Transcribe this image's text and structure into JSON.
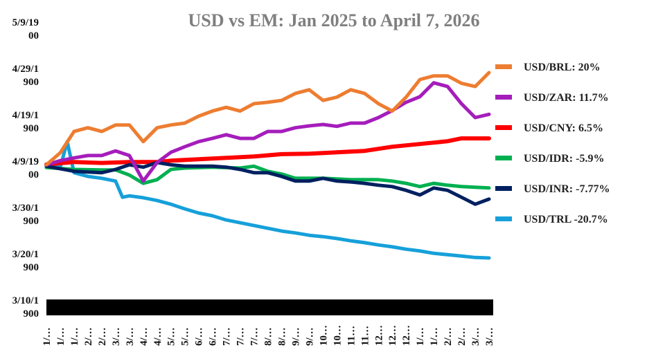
{
  "chart_data": {
    "type": "line",
    "title": "USD vs EM: Jan 2025 to April 7, 2026",
    "xlabel": "",
    "ylabel": "",
    "ylim": [
      70,
      130
    ],
    "y_tick_values": [
      70,
      80,
      90,
      100,
      110,
      120,
      130
    ],
    "y_tick_labels": [
      [
        "3/10/1",
        "900"
      ],
      [
        "3/20/1",
        "900"
      ],
      [
        "3/30/1",
        "900"
      ],
      [
        "4/9/19",
        "00"
      ],
      [
        "4/19/1",
        "900"
      ],
      [
        "4/29/1",
        "900"
      ],
      [
        "5/9/19",
        "00"
      ]
    ],
    "x_tick_labels": [
      "1/…",
      "1/…",
      "1/…",
      "2/…",
      "2/…",
      "3/…",
      "3/…",
      "4/…",
      "4/…",
      "5/…",
      "5/…",
      "6/…",
      "6/…",
      "7/…",
      "7/…",
      "7/…",
      "8/…",
      "8/…",
      "9/…",
      "9/…",
      "10…",
      "10…",
      "11…",
      "11…",
      "12…",
      "12…",
      "12…",
      "1/…",
      "1/…",
      "2/…",
      "2/…",
      "3/…",
      "3/…"
    ],
    "xlim": [
      0,
      32.3
    ],
    "legend_position": "right",
    "grid": false,
    "series": [
      {
        "name": "USD/BRL: 20%",
        "color": "#ED7D31",
        "x": [
          0,
          1,
          2,
          3,
          4,
          5,
          6,
          7,
          8,
          9,
          10,
          11,
          12,
          13,
          14,
          15,
          16,
          17,
          18,
          19,
          20,
          21,
          22,
          23,
          24,
          25,
          26,
          27,
          28,
          29,
          30,
          31,
          32
        ],
        "values": [
          100.4,
          103,
          107.6,
          108.4,
          107.6,
          109,
          109,
          105.4,
          108.4,
          109,
          109.4,
          110.9,
          112,
          112.8,
          112,
          113.6,
          113.9,
          114.3,
          115.8,
          116.6,
          114.3,
          115,
          116.6,
          115.8,
          113.6,
          112,
          115,
          118.8,
          119.6,
          119.6,
          118,
          117.3,
          120.3
        ]
      },
      {
        "name": "USD/ZAR: 11.7%",
        "color": "#A51DBB",
        "x": [
          0,
          1,
          2,
          3,
          4,
          5,
          6,
          7,
          8,
          9,
          10,
          11,
          12,
          13,
          14,
          15,
          16,
          17,
          18,
          19,
          20,
          21,
          22,
          23,
          24,
          25,
          26,
          27,
          28,
          29,
          30,
          31,
          32
        ],
        "values": [
          100.4,
          101.3,
          101.9,
          102.4,
          102.4,
          103.4,
          102.4,
          96.9,
          100.9,
          103.1,
          104.3,
          105.4,
          106.1,
          106.9,
          106.1,
          106.1,
          107.6,
          107.6,
          108.4,
          108.8,
          109.1,
          108.7,
          109.4,
          109.4,
          110.6,
          112.1,
          113.9,
          115.1,
          118.1,
          117.3,
          113.6,
          110.6,
          111.3
        ]
      },
      {
        "name": "USD/CNY: 6.5%",
        "color": "#FF0000",
        "x": [
          0,
          2,
          4,
          6,
          8,
          9,
          11,
          13,
          15,
          17,
          19,
          21,
          23,
          25,
          27,
          29,
          30,
          32
        ],
        "values": [
          100.5,
          101,
          100.8,
          101,
          101,
          101.3,
          101.6,
          101.9,
          102.2,
          102.7,
          102.8,
          103.1,
          103.4,
          104.3,
          104.9,
          105.5,
          106.1,
          106.1
        ]
      },
      {
        "name": "USD/IDR: -5.9%",
        "color": "#00B050",
        "x": [
          0,
          2,
          4,
          5,
          6,
          7,
          8,
          9,
          10,
          12,
          14,
          15,
          16,
          17,
          18,
          19,
          20,
          22,
          24,
          25,
          26,
          27,
          28,
          29,
          30,
          32
        ],
        "values": [
          99.8,
          99.4,
          99.3,
          99.3,
          98.2,
          96.4,
          97.2,
          99.4,
          99.7,
          99.9,
          99.7,
          100.1,
          99,
          98.4,
          97.5,
          97.5,
          97.5,
          97.2,
          97.2,
          96.9,
          96.4,
          95.7,
          96.4,
          96,
          95.7,
          95.4
        ]
      },
      {
        "name": "USD/INR: -7.77%",
        "color": "#002060",
        "x": [
          0,
          2,
          4,
          5,
          6,
          7,
          8,
          9,
          10,
          11,
          12,
          13,
          14,
          15,
          16,
          17,
          18,
          19,
          20,
          21,
          22,
          23,
          24,
          25,
          26,
          27,
          28,
          29,
          30,
          31,
          32
        ],
        "values": [
          100.1,
          99,
          98.7,
          99.4,
          100.4,
          99.9,
          100.9,
          100.4,
          100.1,
          100.1,
          100.1,
          99.9,
          99.4,
          98.7,
          98.7,
          97.9,
          96.9,
          96.9,
          97.5,
          96.9,
          96.7,
          96.4,
          96,
          95.7,
          94.9,
          93.9,
          95.4,
          94.9,
          93.4,
          91.9,
          93
        ]
      },
      {
        "name": "USD/TRL -20.7%",
        "color": "#16A0DA",
        "x": [
          0,
          1,
          1.5,
          2,
          3,
          4,
          5,
          5.5,
          6,
          7,
          8,
          9,
          10,
          11,
          12,
          13,
          14,
          15,
          16,
          17,
          18,
          19,
          20,
          21,
          22,
          23,
          24,
          25,
          26,
          27,
          28,
          29,
          30,
          31,
          32
        ],
        "values": [
          100.4,
          99.9,
          105.4,
          98.7,
          97.9,
          97.5,
          96.9,
          93.4,
          93.7,
          93.3,
          92.7,
          91.9,
          90.9,
          90,
          89.4,
          88.5,
          87.9,
          87.3,
          86.7,
          86.1,
          85.7,
          85.2,
          84.9,
          84.5,
          84,
          83.6,
          83.1,
          82.7,
          82.2,
          81.8,
          81.3,
          81,
          80.7,
          80.4,
          80.3
        ]
      }
    ]
  }
}
